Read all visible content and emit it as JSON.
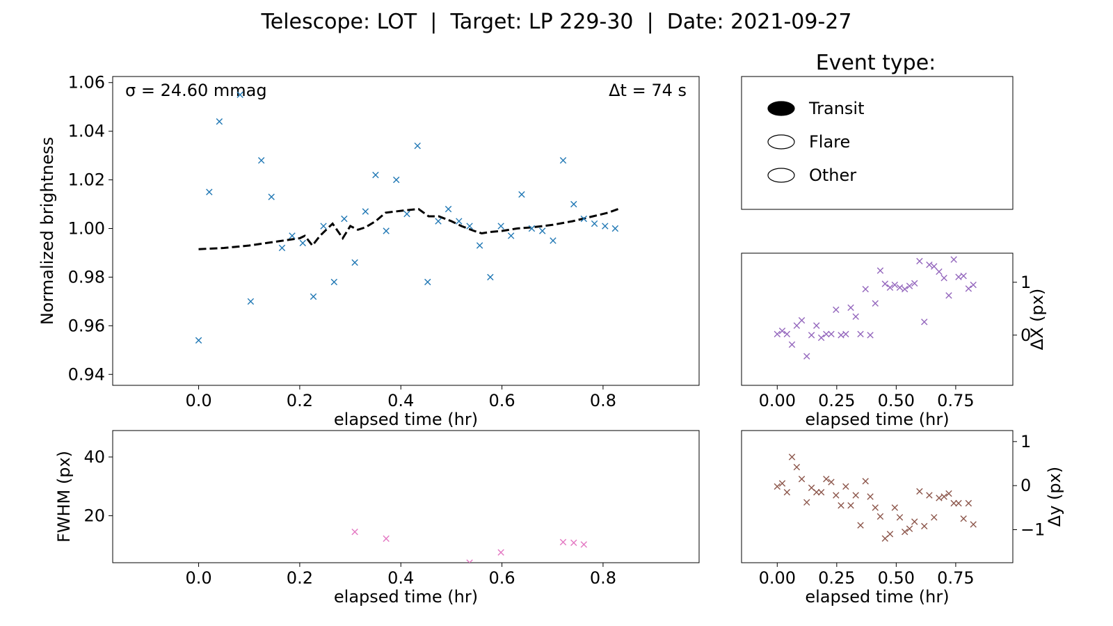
{
  "title": "Telescope: LOT  |  Target: LP 229-30  |  Date: 2021-09-27",
  "legend": {
    "title": "Event type:",
    "options": [
      {
        "label": "Transit",
        "selected": true
      },
      {
        "label": "Flare",
        "selected": false
      },
      {
        "label": "Other",
        "selected": false
      }
    ]
  },
  "colors": {
    "brightness": "#1f77b4",
    "fit": "#000000",
    "fwhm": "#e377c2",
    "dx": "#9467bd",
    "dy": "#8c564b"
  },
  "chart_data": [
    {
      "id": "brightness",
      "type": "scatter",
      "xlabel": "elapsed time (hr)",
      "ylabel": "Normalized brightness",
      "xlim": [
        -0.17,
        0.99
      ],
      "ylim": [
        0.9355,
        1.0625
      ],
      "xticks": [
        0.0,
        0.2,
        0.4,
        0.6,
        0.8
      ],
      "xticklabels": [
        "0.0",
        "0.2",
        "0.4",
        "0.6",
        "0.8"
      ],
      "yticks": [
        0.94,
        0.96,
        0.98,
        1.0,
        1.02,
        1.04,
        1.06
      ],
      "yticklabels": [
        "0.94",
        "0.96",
        "0.98",
        "1.00",
        "1.02",
        "1.04",
        "1.06"
      ],
      "annotations": {
        "left": "σ = 24.60 mmag",
        "right": "Δt = 74 s"
      },
      "points": {
        "x": [
          0.0,
          0.021,
          0.041,
          0.082,
          0.103,
          0.124,
          0.144,
          0.165,
          0.185,
          0.206,
          0.227,
          0.247,
          0.268,
          0.288,
          0.309,
          0.33,
          0.35,
          0.371,
          0.391,
          0.412,
          0.433,
          0.453,
          0.474,
          0.494,
          0.515,
          0.536,
          0.556,
          0.577,
          0.598,
          0.618,
          0.639,
          0.659,
          0.68,
          0.701,
          0.721,
          0.742,
          0.762,
          0.783,
          0.804,
          0.824
        ],
        "y": [
          0.954,
          1.015,
          1.044,
          1.055,
          0.97,
          1.028,
          1.013,
          0.992,
          0.997,
          0.994,
          0.972,
          1.001,
          0.978,
          1.004,
          0.986,
          1.007,
          1.022,
          0.999,
          1.02,
          1.006,
          1.034,
          0.978,
          1.003,
          1.008,
          1.003,
          1.001,
          0.993,
          0.98,
          1.001,
          0.997,
          1.014,
          1.0,
          0.999,
          0.995,
          1.028,
          1.01,
          1.004,
          1.002,
          1.001,
          1.0
        ]
      },
      "fit": {
        "x": [
          0.0,
          0.05,
          0.1,
          0.15,
          0.2,
          0.21,
          0.225,
          0.24,
          0.265,
          0.285,
          0.3,
          0.315,
          0.33,
          0.35,
          0.37,
          0.39,
          0.41,
          0.435,
          0.455,
          0.475,
          0.5,
          0.52,
          0.545,
          0.56,
          0.575,
          0.6,
          0.63,
          0.66,
          0.7,
          0.74,
          0.78,
          0.81,
          0.83
        ],
        "y": [
          0.9915,
          0.992,
          0.993,
          0.9945,
          0.996,
          0.997,
          0.993,
          0.997,
          1.002,
          0.996,
          1.001,
          0.9995,
          1.0005,
          1.003,
          1.0065,
          1.007,
          1.0075,
          1.008,
          1.005,
          1.005,
          1.003,
          1.001,
          0.999,
          0.998,
          0.9985,
          0.999,
          1.0,
          1.0005,
          1.0015,
          1.003,
          1.005,
          1.0065,
          1.008
        ]
      }
    },
    {
      "id": "fwhm",
      "type": "scatter",
      "xlabel": "elapsed time (hr)",
      "ylabel": "FWHM (px)",
      "xlim": [
        -0.17,
        0.99
      ],
      "ylim": [
        4,
        49
      ],
      "xticks": [
        0.0,
        0.2,
        0.4,
        0.6,
        0.8
      ],
      "xticklabels": [
        "0.0",
        "0.2",
        "0.4",
        "0.6",
        "0.8"
      ],
      "yticks": [
        20,
        40
      ],
      "yticklabels": [
        "20",
        "40"
      ],
      "points": {
        "x": [
          0.309,
          0.371,
          0.536,
          0.598,
          0.721,
          0.742,
          0.762
        ],
        "y": [
          14.5,
          12.2,
          4.0,
          7.5,
          11.0,
          10.8,
          10.2
        ]
      }
    },
    {
      "id": "dx",
      "type": "scatter",
      "xlabel": "elapsed time (hr)",
      "ylabel": "ΔX (px)",
      "xlim": [
        -0.15,
        0.99
      ],
      "ylim": [
        -0.95,
        1.55
      ],
      "xticks": [
        0.0,
        0.25,
        0.5,
        0.75
      ],
      "xticklabels": [
        "0.00",
        "0.25",
        "0.50",
        "0.75"
      ],
      "yticks": [
        0,
        1
      ],
      "yticklabels": [
        "0",
        "1"
      ],
      "points": {
        "x": [
          0.0,
          0.021,
          0.041,
          0.062,
          0.082,
          0.103,
          0.124,
          0.144,
          0.165,
          0.185,
          0.206,
          0.227,
          0.247,
          0.268,
          0.288,
          0.309,
          0.33,
          0.35,
          0.371,
          0.391,
          0.412,
          0.433,
          0.453,
          0.474,
          0.494,
          0.515,
          0.536,
          0.556,
          0.577,
          0.598,
          0.618,
          0.639,
          0.659,
          0.68,
          0.701,
          0.721,
          0.742,
          0.762,
          0.783,
          0.804,
          0.824
        ],
        "y": [
          0.02,
          0.08,
          0.02,
          -0.18,
          0.18,
          0.28,
          -0.4,
          0.0,
          0.18,
          -0.05,
          0.02,
          0.02,
          0.48,
          0.0,
          0.02,
          0.52,
          0.35,
          0.02,
          0.87,
          0.0,
          0.6,
          1.22,
          0.97,
          0.9,
          0.95,
          0.9,
          0.87,
          0.93,
          0.98,
          1.4,
          0.25,
          1.33,
          1.3,
          1.2,
          1.08,
          0.75,
          1.43,
          1.1,
          1.12,
          0.88,
          0.95
        ]
      }
    },
    {
      "id": "dy",
      "type": "scatter",
      "xlabel": "elapsed time (hr)",
      "ylabel": "Δy (px)",
      "xlim": [
        -0.15,
        0.99
      ],
      "ylim": [
        -1.75,
        1.25
      ],
      "xticks": [
        0.0,
        0.25,
        0.5,
        0.75
      ],
      "xticklabels": [
        "0.00",
        "0.25",
        "0.50",
        "0.75"
      ],
      "yticks": [
        -1,
        0,
        1
      ],
      "yticklabels": [
        "−1",
        "0",
        "1"
      ],
      "points": {
        "x": [
          0.0,
          0.021,
          0.041,
          0.062,
          0.082,
          0.103,
          0.124,
          0.144,
          0.165,
          0.185,
          0.206,
          0.227,
          0.247,
          0.268,
          0.288,
          0.309,
          0.33,
          0.35,
          0.371,
          0.391,
          0.412,
          0.433,
          0.453,
          0.474,
          0.494,
          0.515,
          0.536,
          0.556,
          0.577,
          0.598,
          0.618,
          0.639,
          0.659,
          0.68,
          0.701,
          0.721,
          0.742,
          0.762,
          0.783,
          0.804,
          0.824
        ],
        "y": [
          -0.02,
          0.05,
          -0.15,
          0.65,
          0.42,
          0.15,
          -0.38,
          -0.05,
          -0.15,
          -0.15,
          0.15,
          0.08,
          -0.22,
          -0.45,
          -0.02,
          -0.45,
          -0.22,
          -0.9,
          0.1,
          -0.25,
          -0.5,
          -0.7,
          -1.2,
          -1.1,
          -0.5,
          -0.72,
          -1.05,
          -0.98,
          -0.82,
          -0.13,
          -0.92,
          -0.22,
          -0.72,
          -0.28,
          -0.25,
          -0.18,
          -0.4,
          -0.4,
          -0.75,
          -0.4,
          -0.88
        ]
      }
    }
  ]
}
